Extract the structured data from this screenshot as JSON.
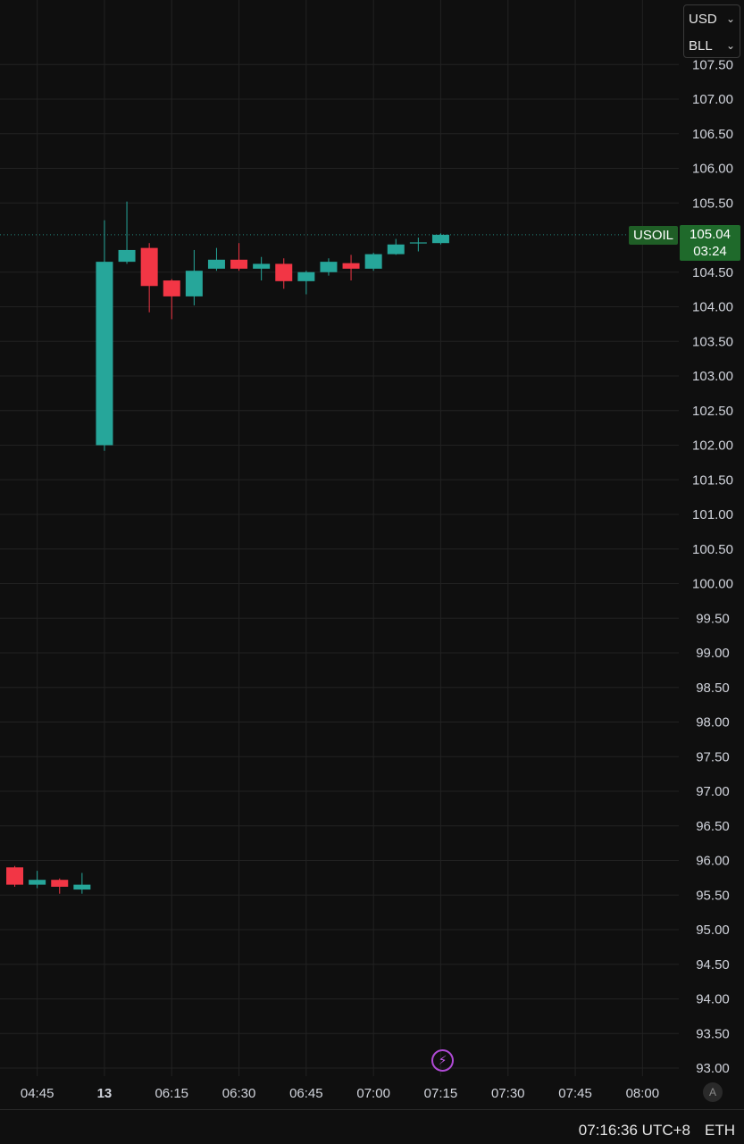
{
  "units": {
    "currency": "USD",
    "unit": "BLL"
  },
  "current": {
    "symbol": "USOIL",
    "price": "105.04",
    "countdown": "03:24"
  },
  "status": {
    "time": "07:16:36 UTC+8",
    "mode": "ETH"
  },
  "auto_scale_label": "A",
  "colors": {
    "up": "#26a69a",
    "down": "#f23645",
    "grid": "#222222",
    "bg": "#0f0f0f",
    "price_line": "#26a69a"
  },
  "chart_data": {
    "type": "candlestick",
    "price_ticks": [
      "107.50",
      "107.00",
      "106.50",
      "106.00",
      "105.50",
      "104.50",
      "104.00",
      "103.50",
      "103.00",
      "102.50",
      "102.00",
      "101.50",
      "101.00",
      "100.50",
      "100.00",
      "99.50",
      "99.00",
      "98.50",
      "98.00",
      "97.50",
      "97.00",
      "96.50",
      "96.00",
      "95.50",
      "95.00",
      "94.50",
      "94.00",
      "93.50",
      "93.00"
    ],
    "time_ticks": [
      {
        "label": "04:45",
        "slot": 1.5
      },
      {
        "label": "13",
        "slot": 4.5,
        "bold": true
      },
      {
        "label": "06:15",
        "slot": 7.5
      },
      {
        "label": "06:30",
        "slot": 10.5
      },
      {
        "label": "06:45",
        "slot": 13.5
      },
      {
        "label": "07:00",
        "slot": 16.5
      },
      {
        "label": "07:15",
        "slot": 19.5
      },
      {
        "label": "07:30",
        "slot": 22.5
      },
      {
        "label": "07:45",
        "slot": 25.5
      },
      {
        "label": "08:00",
        "slot": 28.5
      }
    ],
    "ylim": [
      93.0,
      107.6
    ],
    "candles": [
      {
        "slot": 0.5,
        "o": 95.9,
        "h": 95.92,
        "c": 95.65,
        "l": 95.62
      },
      {
        "slot": 1.5,
        "o": 95.65,
        "h": 95.85,
        "c": 95.72,
        "l": 95.6
      },
      {
        "slot": 2.5,
        "o": 95.72,
        "h": 95.74,
        "c": 95.62,
        "l": 95.52
      },
      {
        "slot": 3.5,
        "o": 95.58,
        "h": 95.82,
        "c": 95.65,
        "l": 95.52
      },
      {
        "slot": 4.5,
        "o": 102.0,
        "h": 105.25,
        "c": 104.65,
        "l": 101.92
      },
      {
        "slot": 5.5,
        "o": 104.65,
        "h": 105.52,
        "c": 104.82,
        "l": 104.62
      },
      {
        "slot": 6.5,
        "o": 104.85,
        "h": 104.92,
        "c": 104.3,
        "l": 103.92
      },
      {
        "slot": 7.5,
        "o": 104.38,
        "h": 104.4,
        "c": 104.15,
        "l": 103.82
      },
      {
        "slot": 8.5,
        "o": 104.15,
        "h": 104.82,
        "c": 104.52,
        "l": 104.02
      },
      {
        "slot": 9.5,
        "o": 104.55,
        "h": 104.85,
        "c": 104.68,
        "l": 104.52
      },
      {
        "slot": 10.5,
        "o": 104.68,
        "h": 104.92,
        "c": 104.55,
        "l": 104.52
      },
      {
        "slot": 11.5,
        "o": 104.55,
        "h": 104.72,
        "c": 104.62,
        "l": 104.38
      },
      {
        "slot": 12.5,
        "o": 104.62,
        "h": 104.7,
        "c": 104.37,
        "l": 104.26
      },
      {
        "slot": 13.5,
        "o": 104.37,
        "h": 104.52,
        "c": 104.5,
        "l": 104.18
      },
      {
        "slot": 14.5,
        "o": 104.5,
        "h": 104.7,
        "c": 104.65,
        "l": 104.45
      },
      {
        "slot": 15.5,
        "o": 104.63,
        "h": 104.75,
        "c": 104.55,
        "l": 104.38
      },
      {
        "slot": 16.5,
        "o": 104.55,
        "h": 104.78,
        "c": 104.76,
        "l": 104.52
      },
      {
        "slot": 17.5,
        "o": 104.76,
        "h": 104.98,
        "c": 104.9,
        "l": 104.75
      },
      {
        "slot": 18.5,
        "o": 104.92,
        "h": 105.0,
        "c": 104.93,
        "l": 104.8
      },
      {
        "slot": 19.5,
        "o": 104.92,
        "h": 105.06,
        "c": 105.04,
        "l": 104.9
      }
    ]
  }
}
